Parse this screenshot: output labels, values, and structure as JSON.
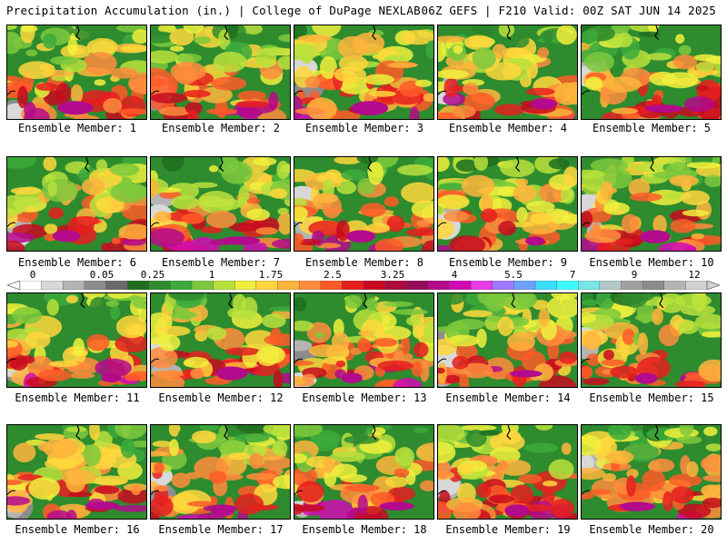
{
  "header": {
    "left_title": "Precipitation Accumulation (in.) | College of DuPage NEXLAB",
    "right_title": "06Z GEFS | F210 Valid: 00Z SAT JUN 14 2025"
  },
  "colorbar": {
    "labels": [
      "0",
      "0.05",
      "0.25",
      "1",
      "1.75",
      "2.5",
      "3.25",
      "4",
      "5.5",
      "7",
      "9",
      "12"
    ],
    "colors": [
      "#ffffff",
      "#d8d8d8",
      "#b4b4b4",
      "#8c8c8c",
      "#6a6a6a",
      "#1e6e1e",
      "#2e8b2e",
      "#3caa3c",
      "#7cc83c",
      "#b8e03c",
      "#f0f03c",
      "#ffd73c",
      "#ffb43c",
      "#ff8c3c",
      "#ff5a28",
      "#e61e1e",
      "#c80a1e",
      "#aa0a3c",
      "#960a5a",
      "#b40a8c",
      "#d20ab4",
      "#e63ce6",
      "#a078ff",
      "#6ea0ff",
      "#3cdcff",
      "#3cffff",
      "#78e6e6",
      "#b4c8c8",
      "#a0a0a0",
      "#8c8c8c",
      "#b4b4b4",
      "#d2d2d2"
    ]
  },
  "members": [
    {
      "label": "Ensemble Member: 1"
    },
    {
      "label": "Ensemble Member: 2"
    },
    {
      "label": "Ensemble Member: 3"
    },
    {
      "label": "Ensemble Member: 4"
    },
    {
      "label": "Ensemble Member: 5"
    },
    {
      "label": "Ensemble Member: 6"
    },
    {
      "label": "Ensemble Member: 7"
    },
    {
      "label": "Ensemble Member: 8"
    },
    {
      "label": "Ensemble Member: 9"
    },
    {
      "label": "Ensemble Member: 10"
    },
    {
      "label": "Ensemble Member: 11"
    },
    {
      "label": "Ensemble Member: 12"
    },
    {
      "label": "Ensemble Member: 13"
    },
    {
      "label": "Ensemble Member: 14"
    },
    {
      "label": "Ensemble Member: 15"
    },
    {
      "label": "Ensemble Member: 16"
    },
    {
      "label": "Ensemble Member: 17"
    },
    {
      "label": "Ensemble Member: 18"
    },
    {
      "label": "Ensemble Member: 19"
    },
    {
      "label": "Ensemble Member: 20"
    }
  ]
}
